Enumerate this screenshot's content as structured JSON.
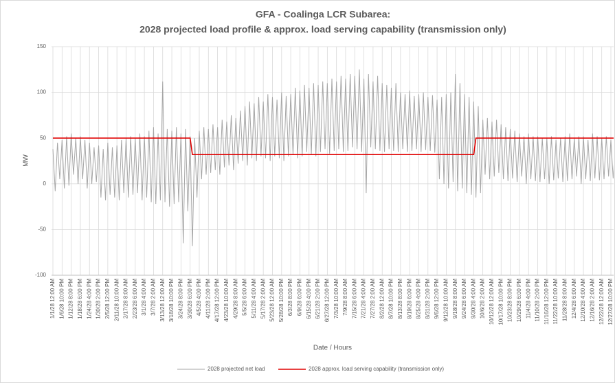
{
  "chart_data": {
    "type": "line",
    "title": "GFA - Coalinga LCR Subarea:",
    "subtitle": "2028 projected load profile & approx. load serving capability (transmission only)",
    "x_label": "Date / Hours",
    "y_label": "MW",
    "ylim": [
      -100,
      150
    ],
    "yticks": [
      -100,
      -50,
      0,
      50,
      100,
      150
    ],
    "grid": true,
    "legend": "bottom",
    "categories": [
      "1/1/28 12:00 AM",
      null,
      null,
      null,
      "1/6/28 10:00 PM",
      null,
      null,
      null,
      "1/12/28 8:00 PM",
      null,
      null,
      null,
      "1/18/28 6:00 PM",
      null,
      null,
      null,
      "1/24/28 4:00 PM",
      null,
      null,
      null,
      "1/30/28 2:00 PM",
      null,
      null,
      null,
      "2/5/28 12:00 PM",
      null,
      null,
      null,
      "2/11/28 10:00 AM",
      null,
      null,
      null,
      "2/17/28 8:00 AM",
      null,
      null,
      null,
      "2/23/28 6:00 AM",
      null,
      null,
      null,
      "3/1/28 4:00 AM",
      null,
      null,
      null,
      "3/7/28 2:00 AM",
      null,
      null,
      null,
      "3/13/28 12:00 AM",
      null,
      null,
      null,
      "3/18/28 10:00 PM",
      null,
      null,
      null,
      "3/24/28 8:00 PM",
      null,
      null,
      null,
      "3/30/28 6:00 PM",
      null,
      null,
      null,
      "4/5/28 4:00 PM",
      null,
      null,
      null,
      "4/11/28 2:00 PM",
      null,
      null,
      null,
      "4/17/28 12:00 PM",
      null,
      null,
      null,
      "4/23/28 10:00 AM",
      null,
      null,
      null,
      "4/29/28 8:00 AM",
      null,
      null,
      null,
      "5/5/28 6:00 AM",
      null,
      null,
      null,
      "5/11/28 4:00 AM",
      null,
      null,
      null,
      "5/17/28 2:00 AM",
      null,
      null,
      null,
      "5/23/28 12:00 AM",
      null,
      null,
      null,
      "5/28/28 10:00 PM",
      null,
      null,
      null,
      "6/3/28 8:00 PM",
      null,
      null,
      null,
      "6/9/28 6:00 PM",
      null,
      null,
      null,
      "6/15/28 4:00 PM",
      null,
      null,
      null,
      "6/21/28 2:00 PM",
      null,
      null,
      null,
      "6/27/28 12:00 PM",
      null,
      null,
      null,
      "7/3/28 10:00 AM",
      null,
      null,
      null,
      "7/9/28 8:00 AM",
      null,
      null,
      null,
      "7/15/28 6:00 AM",
      null,
      null,
      null,
      "7/21/28 4:00 AM",
      null,
      null,
      null,
      "7/27/28 2:00 AM",
      null,
      null,
      null,
      "8/2/28 12:00 AM",
      null,
      null,
      null,
      "8/7/28 10:00 PM",
      null,
      null,
      null,
      "8/13/28 8:00 PM",
      null,
      null,
      null,
      "8/19/28 6:00 PM",
      null,
      null,
      null,
      "8/25/28 4:00 PM",
      null,
      null,
      null,
      "8/31/28 2:00 PM",
      null,
      null,
      null,
      "9/6/28 12:00 PM",
      null,
      null,
      null,
      "9/12/28 10:00 AM",
      null,
      null,
      null,
      "9/18/28 8:00 AM",
      null,
      null,
      null,
      "9/24/28 6:00 AM",
      null,
      null,
      null,
      "9/30/28 4:00 AM",
      null,
      null,
      null,
      "10/6/28 2:00 AM",
      null,
      null,
      null,
      "10/12/28 12:00 AM",
      null,
      null,
      null,
      "10/17/28 10:00 PM",
      null,
      null,
      null,
      "10/23/28 8:00 PM",
      null,
      null,
      null,
      "10/29/28 6:00 PM",
      null,
      null,
      null,
      "11/4/28 4:00 PM",
      null,
      null,
      null,
      "11/10/28 2:00 PM",
      null,
      null,
      null,
      "11/16/28 12:00 PM",
      null,
      null,
      null,
      "11/22/28 10:00 AM",
      null,
      null,
      null,
      "11/28/28 8:00 AM",
      null,
      null,
      null,
      "12/4/28 6:00 AM",
      null,
      null,
      null,
      "12/10/28 4:00 AM",
      null,
      null,
      null,
      "12/16/28 2:00 AM",
      null,
      null,
      null,
      "12/22/28 12:00 AM",
      null,
      null,
      null,
      "12/27/28 10:00 PM",
      null,
      null,
      null
    ],
    "series": [
      {
        "name": "2028 projected net load",
        "color": "#a6a6a6",
        "values": [
          38,
          -8,
          45,
          5,
          48,
          -5,
          52,
          -2,
          55,
          10,
          50,
          0,
          52,
          5,
          48,
          -5,
          45,
          0,
          40,
          2,
          42,
          -15,
          38,
          -18,
          45,
          -12,
          40,
          -15,
          42,
          -18,
          48,
          -10,
          50,
          -15,
          52,
          -12,
          50,
          -10,
          55,
          -18,
          52,
          -15,
          58,
          -20,
          62,
          -22,
          55,
          -18,
          112,
          -20,
          60,
          -25,
          58,
          -22,
          62,
          -20,
          55,
          -65,
          60,
          -30,
          52,
          -68,
          50,
          -15,
          58,
          5,
          62,
          10,
          60,
          12,
          65,
          15,
          62,
          10,
          70,
          18,
          68,
          20,
          75,
          15,
          72,
          22,
          80,
          25,
          85,
          20,
          90,
          28,
          88,
          25,
          95,
          30,
          90,
          28,
          98,
          25,
          95,
          30,
          92,
          28,
          100,
          25,
          96,
          30,
          98,
          32,
          105,
          28,
          102,
          30,
          108,
          35,
          105,
          32,
          110,
          30,
          108,
          35,
          112,
          38,
          110,
          33,
          115,
          36,
          112,
          38,
          118,
          35,
          115,
          36,
          120,
          40,
          118,
          38,
          125,
          35,
          115,
          -10,
          120,
          40,
          112,
          38,
          118,
          36,
          110,
          35,
          108,
          38,
          105,
          36,
          110,
          35,
          100,
          38,
          98,
          35,
          102,
          36,
          96,
          38,
          98,
          35,
          100,
          37,
          95,
          36,
          97,
          34,
          92,
          5,
          95,
          0,
          98,
          -5,
          100,
          2,
          120,
          -8,
          110,
          -5,
          98,
          -10,
          95,
          -12,
          90,
          -15,
          85,
          -10,
          70,
          10,
          72,
          5,
          68,
          8,
          70,
          12,
          65,
          5,
          62,
          3,
          60,
          6,
          58,
          2,
          55,
          8,
          52,
          0,
          55,
          5,
          52,
          3,
          52,
          2,
          50,
          5,
          50,
          0,
          52,
          4,
          48,
          6,
          50,
          2,
          52,
          3,
          55,
          5,
          50,
          8,
          52,
          0,
          52,
          5,
          48,
          3,
          55,
          6,
          52,
          4,
          50,
          5,
          52,
          8,
          48,
          6,
          50,
          10
        ]
      },
      {
        "name": "2028 approx. load serving capability (transmission only)",
        "color": "#e00000",
        "values": [
          50,
          50,
          50,
          50,
          50,
          50,
          50,
          50,
          50,
          50,
          50,
          50,
          50,
          50,
          50,
          50,
          50,
          50,
          50,
          50,
          50,
          50,
          50,
          50,
          50,
          50,
          50,
          50,
          50,
          50,
          50,
          50,
          50,
          50,
          50,
          50,
          50,
          50,
          50,
          50,
          50,
          50,
          50,
          50,
          50,
          50,
          50,
          50,
          50,
          50,
          50,
          50,
          50,
          50,
          50,
          50,
          50,
          50,
          50,
          50,
          50,
          32,
          32,
          32,
          32,
          32,
          32,
          32,
          32,
          32,
          32,
          32,
          32,
          32,
          32,
          32,
          32,
          32,
          32,
          32,
          32,
          32,
          32,
          32,
          32,
          32,
          32,
          32,
          32,
          32,
          32,
          32,
          32,
          32,
          32,
          32,
          32,
          32,
          32,
          32,
          32,
          32,
          32,
          32,
          32,
          32,
          32,
          32,
          32,
          32,
          32,
          32,
          32,
          32,
          32,
          32,
          32,
          32,
          32,
          32,
          32,
          32,
          32,
          32,
          32,
          32,
          32,
          32,
          32,
          32,
          32,
          32,
          32,
          32,
          32,
          32,
          32,
          32,
          32,
          32,
          32,
          32,
          32,
          32,
          32,
          32,
          32,
          32,
          32,
          32,
          32,
          32,
          32,
          32,
          32,
          32,
          32,
          32,
          32,
          32,
          32,
          32,
          32,
          32,
          32,
          32,
          32,
          32,
          32,
          32,
          32,
          32,
          32,
          32,
          32,
          32,
          32,
          32,
          32,
          32,
          32,
          32,
          32,
          32,
          32,
          50,
          50,
          50,
          50,
          50,
          50,
          50,
          50,
          50,
          50,
          50,
          50,
          50,
          50,
          50,
          50,
          50,
          50,
          50,
          50,
          50,
          50,
          50,
          50,
          50,
          50,
          50,
          50,
          50,
          50,
          50,
          50,
          50,
          50,
          50,
          50,
          50,
          50,
          50,
          50,
          50,
          50,
          50,
          50,
          50,
          50,
          50,
          50,
          50,
          50,
          50,
          50,
          50,
          50,
          50,
          50,
          50,
          50,
          50,
          50,
          50,
          50,
          50
        ]
      }
    ]
  }
}
